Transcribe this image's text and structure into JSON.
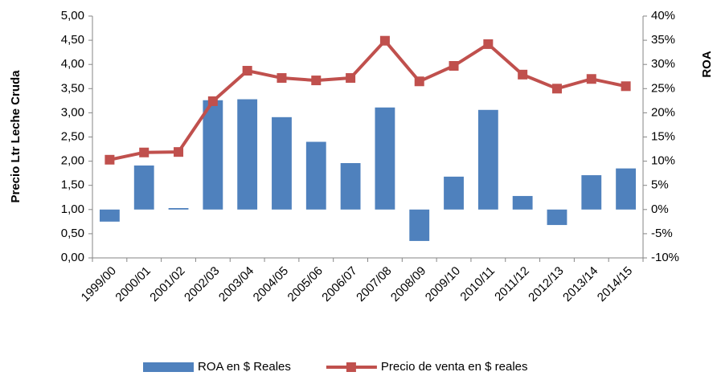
{
  "chart_data": {
    "type": "combo",
    "y_label": "Precio Ltr Leche Cruda",
    "y2_label": "ROA",
    "categories": [
      "1999/00",
      "2000/01",
      "2001/02",
      "2002/03",
      "2003/04",
      "2004/05",
      "2005/06",
      "2006/07",
      "2007/08",
      "2008/09",
      "2009/10",
      "2010/11",
      "2011/12",
      "2012/13",
      "2013/14",
      "2014/15"
    ],
    "series": [
      {
        "name": "ROA en $ Reales",
        "type": "bar",
        "axis": "y2",
        "color": "#4f81bd",
        "values": [
          -2.5,
          9.1,
          0.3,
          22.6,
          22.8,
          19.1,
          14.0,
          9.6,
          21.1,
          -6.5,
          6.8,
          20.6,
          2.8,
          -3.2,
          7.1,
          8.5
        ]
      },
      {
        "name": "Precio de venta en $ reales",
        "type": "line",
        "axis": "y",
        "color": "#c0504d",
        "values": [
          2.03,
          2.18,
          2.19,
          3.24,
          3.87,
          3.72,
          3.67,
          3.72,
          4.49,
          3.65,
          3.97,
          4.42,
          3.79,
          3.5,
          3.7,
          3.55
        ]
      }
    ],
    "ylim": [
      0,
      5
    ],
    "yticks": [
      {
        "value": 0,
        "label": "0,00"
      },
      {
        "value": 0.5,
        "label": "0,50"
      },
      {
        "value": 1,
        "label": "1,00"
      },
      {
        "value": 1.5,
        "label": "1,50"
      },
      {
        "value": 2,
        "label": "2,00"
      },
      {
        "value": 2.5,
        "label": "2,50"
      },
      {
        "value": 3,
        "label": "3,00"
      },
      {
        "value": 3.5,
        "label": "3,50"
      },
      {
        "value": 4,
        "label": "4,00"
      },
      {
        "value": 4.5,
        "label": "4,50"
      },
      {
        "value": 5,
        "label": "5,00"
      }
    ],
    "y2lim": [
      -10,
      40
    ],
    "y2ticks": [
      {
        "value": -10,
        "label": "-10%"
      },
      {
        "value": -5,
        "label": "-5%"
      },
      {
        "value": 0,
        "label": "0%"
      },
      {
        "value": 5,
        "label": "5%"
      },
      {
        "value": 10,
        "label": "10%"
      },
      {
        "value": 15,
        "label": "15%"
      },
      {
        "value": 20,
        "label": "20%"
      },
      {
        "value": 25,
        "label": "25%"
      },
      {
        "value": 30,
        "label": "30%"
      },
      {
        "value": 35,
        "label": "35%"
      },
      {
        "value": 40,
        "label": "40%"
      }
    ],
    "grid": false,
    "legend": "bottom"
  }
}
